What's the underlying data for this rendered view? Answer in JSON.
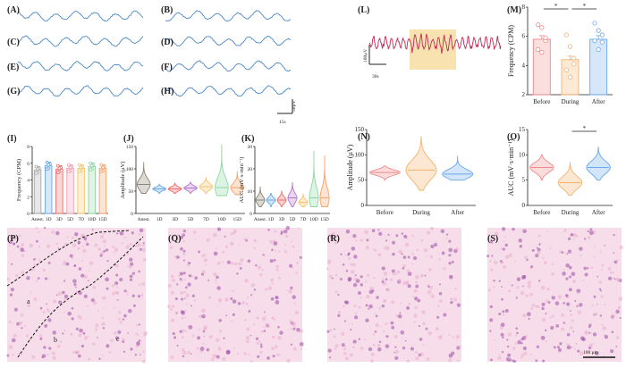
{
  "figure": {
    "panel_letters": [
      "(A)",
      "(B)",
      "(C)",
      "(D)",
      "(E)",
      "(F)",
      "(G)",
      "(H)",
      "(I)",
      "(J)",
      "(K)",
      "(L)",
      "(M)",
      "(N)",
      "(O)",
      "(P)",
      "(Q)",
      "(R)",
      "(S)"
    ],
    "trace_scale": {
      "v": "50μV",
      "t": "15s"
    },
    "l_scale": {
      "v": "100μV",
      "t": "30s"
    },
    "histology": {
      "region_labels": [
        "a",
        "b",
        "c"
      ],
      "scalebar": "100 μm"
    },
    "colors": {
      "trace": "#4a88c7",
      "l_trace": "#c02a57",
      "highlight": "#f8e3b0",
      "before": "#f08a8a",
      "during": "#f5b26b",
      "after": "#6aa8ea",
      "tissue": "#e9aecd",
      "tissue_dark": "#9a4aa8"
    }
  },
  "chart_data": [
    {
      "id": "I",
      "type": "bar",
      "ylabel": "Frequency (CPM)",
      "ylim": [
        0,
        8
      ],
      "yticks": [
        "0",
        "2",
        "4",
        "6",
        "8"
      ],
      "categories": [
        "Anest.",
        "1D",
        "3D",
        "5D",
        "7D",
        "10D",
        "15D"
      ],
      "values": [
        5.2,
        5.7,
        5.3,
        5.4,
        5.4,
        5.6,
        5.4
      ],
      "colors": [
        "#a9a9a9",
        "#6aa8ea",
        "#f26b6b",
        "#f59ab0",
        "#f6c46b",
        "#8fd6a2",
        "#f5a26b"
      ]
    },
    {
      "id": "J",
      "type": "violin",
      "ylabel": "Amplitude (μV)",
      "ylim": [
        0,
        150
      ],
      "yticks": [
        "0",
        "50",
        "100",
        "150"
      ],
      "categories": [
        "Anest.",
        "1D",
        "3D",
        "5D",
        "7D",
        "10D",
        "15D"
      ],
      "medians": [
        65,
        55,
        55,
        57,
        60,
        58,
        58
      ],
      "ranges": [
        [
          45,
          115
        ],
        [
          45,
          65
        ],
        [
          45,
          68
        ],
        [
          45,
          70
        ],
        [
          45,
          80
        ],
        [
          40,
          155
        ],
        [
          42,
          95
        ]
      ],
      "colors": [
        "#8b8473",
        "#6aa8ea",
        "#f26b6b",
        "#b476c8",
        "#f6c46b",
        "#8fd6a2",
        "#f5a26b"
      ]
    },
    {
      "id": "K",
      "type": "violin",
      "ylabel": "AUC (mV·s·min⁻¹)",
      "ylim": [
        0,
        30
      ],
      "yticks": [
        "0",
        "10",
        "20",
        "30"
      ],
      "categories": [
        "Anest.",
        "1D",
        "3D",
        "5D",
        "7D",
        "10D",
        "15D"
      ],
      "medians": [
        6,
        6,
        6,
        7,
        5,
        7,
        7
      ],
      "ranges": [
        [
          3,
          12
        ],
        [
          3,
          9
        ],
        [
          3,
          10
        ],
        [
          3,
          14
        ],
        [
          3,
          9
        ],
        [
          3,
          28
        ],
        [
          3,
          26
        ]
      ],
      "colors": [
        "#8b8473",
        "#6aa8ea",
        "#f26b6b",
        "#b476c8",
        "#f6c46b",
        "#8fd6a2",
        "#f5a26b"
      ]
    },
    {
      "id": "M",
      "type": "bar",
      "ylabel": "Frequency (CPM)",
      "ylim": [
        2,
        8
      ],
      "yticks": [
        "2",
        "4",
        "6",
        "8"
      ],
      "categories": [
        "Before",
        "During",
        "After"
      ],
      "values": [
        5.8,
        4.4,
        5.8
      ],
      "points": [
        [
          6.8,
          6.6,
          5.7,
          5.1,
          4.9,
          5.9
        ],
        [
          6.1,
          5.3,
          4.1,
          3.7,
          3.2,
          4.5
        ],
        [
          6.9,
          6.4,
          6.1,
          5.7,
          5.1,
          5.6
        ]
      ],
      "significance": [
        "*",
        "*"
      ],
      "colors": [
        "#f08a8a",
        "#f5b26b",
        "#6aa8ea"
      ]
    },
    {
      "id": "N",
      "type": "violin",
      "ylabel": "Amplitude (μV)",
      "ylim": [
        0,
        150
      ],
      "yticks": [
        "0",
        "50",
        "100",
        "150"
      ],
      "categories": [
        "Before",
        "During",
        "After"
      ],
      "medians": [
        65,
        70,
        62
      ],
      "ranges": [
        [
          50,
          78
        ],
        [
          30,
          135
        ],
        [
          50,
          98
        ]
      ],
      "colors": [
        "#f08a8a",
        "#f5b26b",
        "#6aa8ea"
      ]
    },
    {
      "id": "O",
      "type": "violin",
      "ylabel": "AUC (mV·s·min⁻¹)",
      "ylim": [
        0,
        15
      ],
      "yticks": [
        "0",
        "5",
        "10",
        "15"
      ],
      "categories": [
        "Before",
        "During",
        "After"
      ],
      "medians": [
        7.5,
        4.5,
        7.5
      ],
      "ranges": [
        [
          5,
          10
        ],
        [
          2,
          8.5
        ],
        [
          5,
          11.5
        ]
      ],
      "significance": [
        "*"
      ],
      "colors": [
        "#f08a8a",
        "#f5b26b",
        "#6aa8ea"
      ]
    }
  ]
}
